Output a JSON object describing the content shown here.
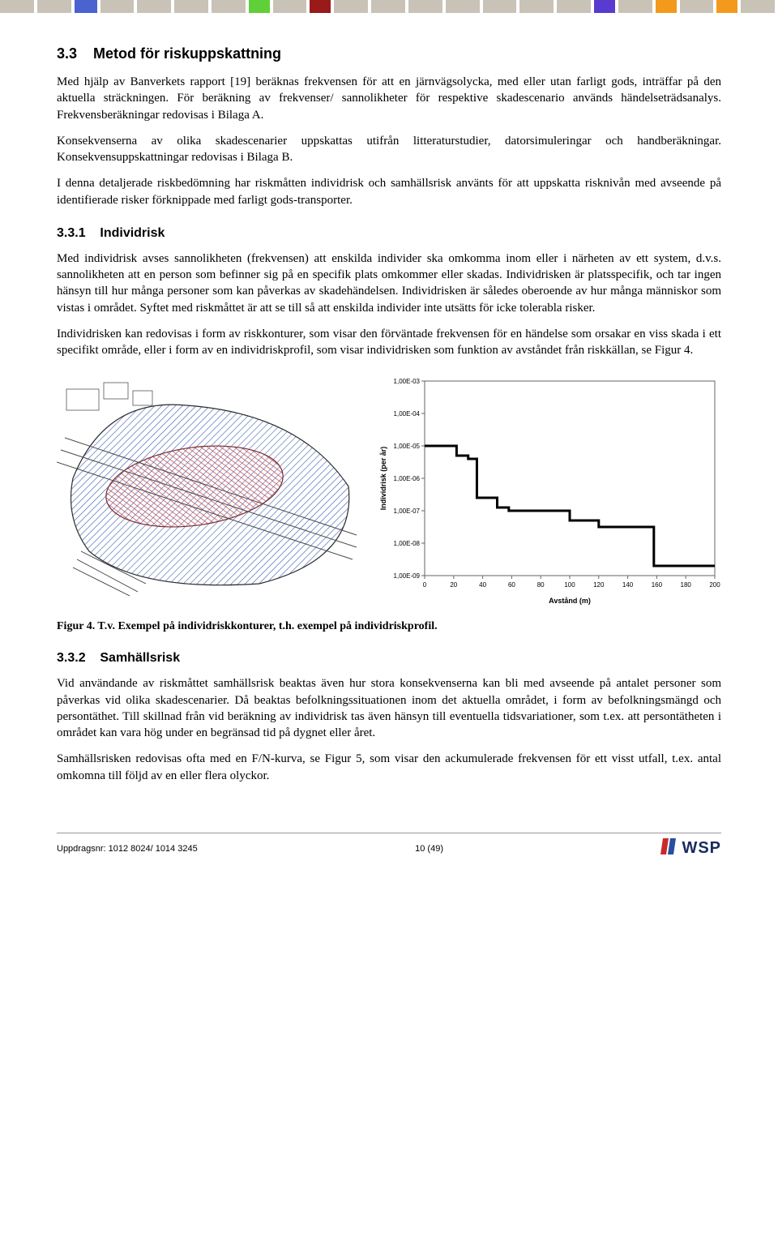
{
  "top_bar_colors": [
    {
      "w": 42,
      "c": "#c9c3b7"
    },
    {
      "w": 42,
      "c": "#c9c3b7"
    },
    {
      "w": 28,
      "c": "#4a63cf"
    },
    {
      "w": 42,
      "c": "#c9c3b7"
    },
    {
      "w": 42,
      "c": "#c9c3b7"
    },
    {
      "w": 42,
      "c": "#c9c3b7"
    },
    {
      "w": 42,
      "c": "#c9c3b7"
    },
    {
      "w": 26,
      "c": "#5fd038"
    },
    {
      "w": 42,
      "c": "#c9c3b7"
    },
    {
      "w": 26,
      "c": "#9a1a1a"
    },
    {
      "w": 42,
      "c": "#c9c3b7"
    },
    {
      "w": 42,
      "c": "#c9c3b7"
    },
    {
      "w": 42,
      "c": "#c9c3b7"
    },
    {
      "w": 42,
      "c": "#c9c3b7"
    },
    {
      "w": 42,
      "c": "#c9c3b7"
    },
    {
      "w": 42,
      "c": "#c9c3b7"
    },
    {
      "w": 42,
      "c": "#c9c3b7"
    },
    {
      "w": 26,
      "c": "#5a3bd1"
    },
    {
      "w": 42,
      "c": "#c9c3b7"
    },
    {
      "w": 26,
      "c": "#f39a1c"
    },
    {
      "w": 42,
      "c": "#c9c3b7"
    },
    {
      "w": 26,
      "c": "#f39a1c"
    },
    {
      "w": 42,
      "c": "#c9c3b7"
    }
  ],
  "section_33": {
    "number": "3.3",
    "title": "Metod för riskuppskattning",
    "p1": "Med hjälp av Banverkets rapport [19] beräknas frekvensen för att en järnvägsolycka, med eller utan farligt gods, inträffar på den aktuella sträckningen. För beräkning av frekvenser/ sannolikheter för respektive skadescenario används händelseträdsanalys. Frekvensberäkningar redovisas i Bilaga A.",
    "p2": "Konsekvenserna av olika skadescenarier uppskattas utifrån litteraturstudier, datorsimuleringar och handberäkningar. Konsekvensuppskattningar redovisas i Bilaga B.",
    "p3": "I denna detaljerade riskbedömning har riskmåtten individrisk och samhällsrisk använts för att uppskatta risknivån med avseende på identifierade risker förknippade med farligt gods-transporter."
  },
  "section_331": {
    "number": "3.3.1",
    "title": "Individrisk",
    "p1": "Med individrisk avses sannolikheten (frekvensen) att enskilda individer ska omkomma inom eller i närheten av ett system, d.v.s. sannolikheten att en person som befinner sig på en specifik plats omkommer eller skadas. Individrisken är platsspecifik, och tar ingen hänsyn till hur många personer som kan påverkas av skadehändelsen. Individrisken är således oberoende av hur många människor som vistas i området. Syftet med riskmåttet är att se till så att enskilda individer inte utsätts för icke tolerabla risker.",
    "p2": "Individrisken kan redovisas i form av riskkonturer, som visar den förväntade frekvensen för en händelse som orsakar en viss skada i ett specifikt område, eller i form av en individriskprofil, som visar individrisken som funktion av avståndet från riskkällan, se Figur 4."
  },
  "fig4_caption": "Figur 4. T.v. Exempel på individriskkonturer, t.h. exempel på individriskprofil.",
  "chart": {
    "type": "step-line-log-y",
    "ylabel": "Individrisk (per år)",
    "xlabel": "Avstånd (m)",
    "xlim": [
      0,
      200
    ],
    "xticks": [
      0,
      20,
      40,
      60,
      80,
      100,
      120,
      140,
      160,
      180,
      200
    ],
    "ylim_exp": [
      -9,
      -3
    ],
    "yticks": [
      "1,00E-03",
      "1,00E-04",
      "1,00E-05",
      "1,00E-06",
      "1,00E-07",
      "1,00E-08",
      "1,00E-09"
    ],
    "line_color": "#000000",
    "line_width": 3,
    "border_color": "#666666",
    "bg_color": "#ffffff",
    "tick_fontsize": 8,
    "label_fontsize": 9,
    "step_points": [
      [
        0,
        -5.0
      ],
      [
        22,
        -5.0
      ],
      [
        22,
        -5.3
      ],
      [
        30,
        -5.3
      ],
      [
        30,
        -5.4
      ],
      [
        36,
        -5.4
      ],
      [
        36,
        -6.6
      ],
      [
        50,
        -6.6
      ],
      [
        50,
        -6.9
      ],
      [
        58,
        -6.9
      ],
      [
        58,
        -7.0
      ],
      [
        100,
        -7.0
      ],
      [
        100,
        -7.3
      ],
      [
        120,
        -7.3
      ],
      [
        120,
        -7.5
      ],
      [
        158,
        -7.5
      ],
      [
        158,
        -8.7
      ],
      [
        200,
        -8.7
      ]
    ]
  },
  "section_332": {
    "number": "3.3.2",
    "title": "Samhällsrisk",
    "p1": "Vid användande av riskmåttet samhällsrisk beaktas även hur stora konsekvenserna kan bli med avseende på antalet personer som påverkas vid olika skadescenarier. Då beaktas befolkningssituationen inom det aktuella området, i form av befolkningsmängd och persontäthet. Till skillnad från vid beräkning av individrisk tas även hänsyn till eventuella tidsvariationer, som t.ex. att persontätheten i området kan vara hög under en begränsad tid på dygnet eller året.",
    "p2": "Samhällsrisken redovisas ofta med en F/N-kurva, se Figur 5, som visar den ackumulerade frekvensen för ett visst utfall, t.ex. antal omkomna till följd av en eller flera olyckor."
  },
  "footer": {
    "left": "Uppdragsnr: 1012 8024/ 1014 3245",
    "center": "10 (49)",
    "logo_text": "WSP",
    "logo_color": "#1a2a5c",
    "logo_bar1": "#c92a2a",
    "logo_bar2": "#2a4fa0"
  },
  "contour_fig": {
    "hatch_color": "#3a5fb0",
    "red_hatch": "#c94a4a",
    "outline": "#2b2b2b"
  }
}
